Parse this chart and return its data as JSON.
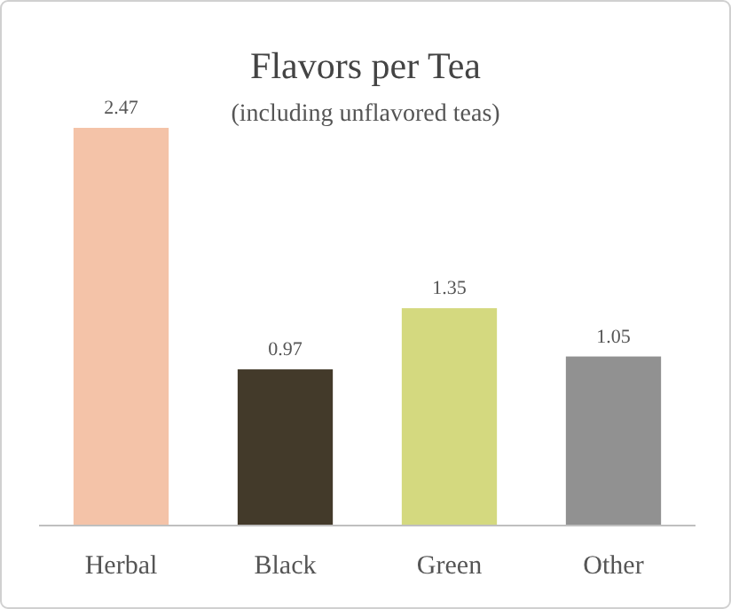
{
  "chart_data": {
    "type": "bar",
    "title": "Flavors per Tea",
    "subtitle": "(including unflavored teas)",
    "categories": [
      "Herbal",
      "Black",
      "Green",
      "Other"
    ],
    "values": [
      2.47,
      0.97,
      1.35,
      1.05
    ],
    "colors": [
      "#f4c3a8",
      "#433a2a",
      "#d4d97f",
      "#919191"
    ],
    "data_labels": true
  }
}
